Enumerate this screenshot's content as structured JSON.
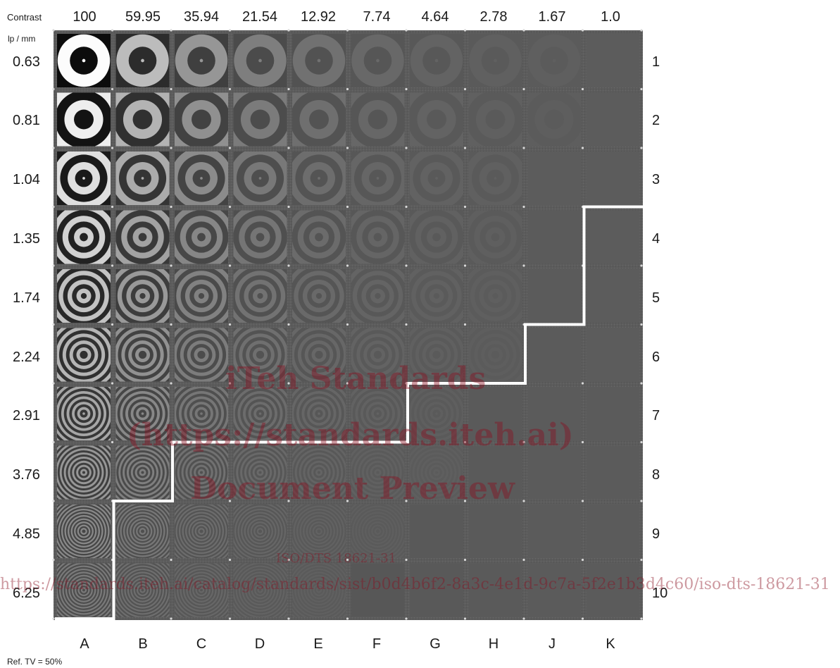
{
  "header": {
    "contrast_label": "Contrast",
    "lpmm_label": "lp / mm",
    "reference_note": "Ref. TV = 50%"
  },
  "columns": [
    {
      "letter": "A",
      "contrast": "100"
    },
    {
      "letter": "B",
      "contrast": "59.95"
    },
    {
      "letter": "C",
      "contrast": "35.94"
    },
    {
      "letter": "D",
      "contrast": "21.54"
    },
    {
      "letter": "E",
      "contrast": "12.92"
    },
    {
      "letter": "F",
      "contrast": "7.74"
    },
    {
      "letter": "G",
      "contrast": "4.64"
    },
    {
      "letter": "H",
      "contrast": "2.78"
    },
    {
      "letter": "J",
      "contrast": "1.67"
    },
    {
      "letter": "K",
      "contrast": "1.0"
    }
  ],
  "rows": [
    {
      "number": "1",
      "lpmm": "0.63"
    },
    {
      "number": "2",
      "lpmm": "0.81"
    },
    {
      "number": "3",
      "lpmm": "1.04"
    },
    {
      "number": "4",
      "lpmm": "1.35"
    },
    {
      "number": "5",
      "lpmm": "1.74"
    },
    {
      "number": "6",
      "lpmm": "2.24"
    },
    {
      "number": "7",
      "lpmm": "2.91"
    },
    {
      "number": "8",
      "lpmm": "3.76"
    },
    {
      "number": "9",
      "lpmm": "4.85"
    },
    {
      "number": "10",
      "lpmm": "6.25"
    }
  ],
  "threshold_boundary": {
    "note": "Number of rows above the threshold line for each column A..K",
    "rows_visible_per_column": [
      10,
      8,
      7,
      7,
      7,
      7,
      6,
      6,
      5,
      3
    ]
  },
  "watermark": {
    "line1": "iTeh Standards",
    "line2": "(https://standards.iteh.ai)",
    "line3": "Document Preview",
    "line4": "ISO/DTS 18621-31",
    "line5": "https://standards.iteh.ai/catalog/standards/sist/b0d4b6f2-8a3c-4e1d-9c7a-5f2e1b3d4c60/iso-dts-18621-31"
  },
  "colors": {
    "panel_background": "#5c5c5c",
    "threshold_line": "#ffffff",
    "watermark": "#8a0f20"
  }
}
